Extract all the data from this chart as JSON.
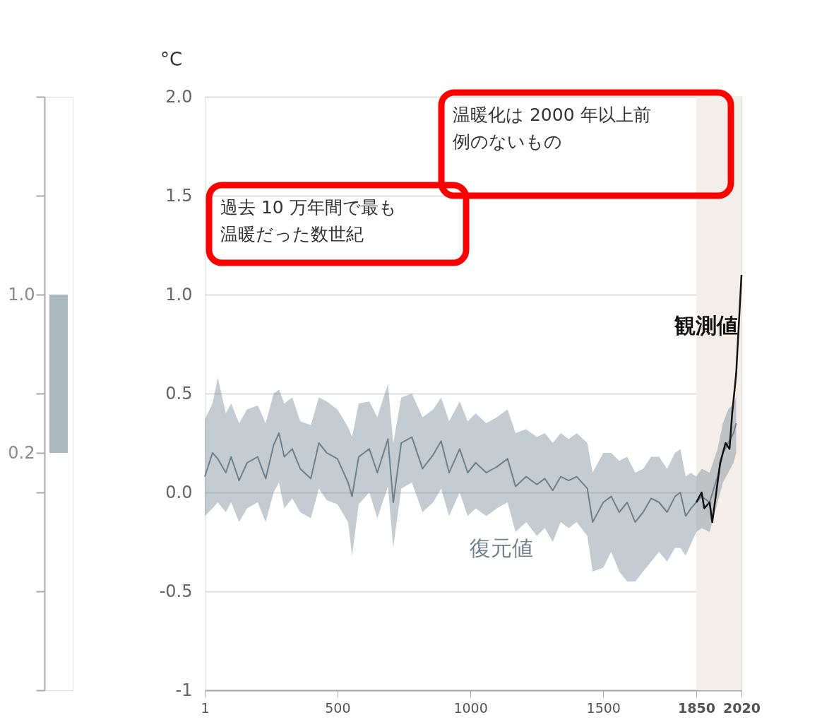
{
  "chart_data": [
    {
      "type": "bar",
      "categories": [
        null
      ],
      "base": [
        0.2
      ],
      "values": [
        0.8
      ],
      "color": "#a9b7bf",
      "ylim": [
        -1,
        2.0
      ],
      "yticks": [
        {
          "value": -1,
          "label": null
        },
        {
          "value": -0.5,
          "label": null
        },
        {
          "value": 0,
          "label": null
        },
        {
          "value": 0.2,
          "label": "0.2"
        },
        {
          "value": 0.5,
          "label": null
        },
        {
          "value": 1.0,
          "label": "1.0"
        },
        {
          "value": 1.5,
          "label": null
        },
        {
          "value": 2.0,
          "label": null
        }
      ],
      "grid": false
    },
    {
      "type": "line",
      "ylabel": "°C",
      "annotations": [
        "過去 10 万年間で最も温暖だった数世紀",
        "温暖化は 2000 年以上前例のないもの"
      ],
      "xlim": [
        1,
        2020
      ],
      "xticks": [
        1,
        500,
        1000,
        1500,
        1850,
        2020
      ],
      "ylim": [
        -1,
        2.0
      ],
      "yticks": [
        {
          "value": -1,
          "label": "-1"
        },
        {
          "value": -0.5,
          "label": "-0.5"
        },
        {
          "value": 0,
          "label": "0.0"
        },
        {
          "value": 0.5,
          "label": "0.5"
        },
        {
          "value": 1.0,
          "label": "1.0"
        },
        {
          "value": 1.5,
          "label": "1.5"
        },
        {
          "value": 2.0,
          "label": "2.0"
        }
      ],
      "grid": "y",
      "bands": [
        {
          "axis": "x",
          "from": 1850,
          "to": 2020,
          "color": "#f4eeea"
        }
      ],
      "series": [
        {
          "name": "復元値",
          "color": "#6f808c",
          "x": [
            1,
            30,
            50,
            80,
            100,
            130,
            160,
            200,
            230,
            260,
            280,
            300,
            330,
            360,
            400,
            430,
            460,
            500,
            540,
            555,
            580,
            620,
            650,
            690,
            710,
            740,
            780,
            820,
            860,
            890,
            920,
            960,
            990,
            1020,
            1060,
            1100,
            1140,
            1170,
            1210,
            1250,
            1280,
            1310,
            1340,
            1370,
            1400,
            1440,
            1460,
            1500,
            1530,
            1560,
            1590,
            1620,
            1650,
            1680,
            1710,
            1740,
            1770,
            1790,
            1810,
            1830,
            1850,
            1870,
            1900,
            1930,
            1950,
            1970,
            1990,
            2000
          ],
          "values": [
            0.08,
            0.2,
            0.17,
            0.1,
            0.18,
            0.06,
            0.15,
            0.18,
            0.07,
            0.24,
            0.3,
            0.18,
            0.22,
            0.12,
            0.07,
            0.25,
            0.2,
            0.17,
            0.05,
            -0.02,
            0.18,
            0.22,
            0.1,
            0.27,
            -0.05,
            0.25,
            0.28,
            0.12,
            0.19,
            0.26,
            0.1,
            0.22,
            0.1,
            0.15,
            0.1,
            0.13,
            0.17,
            0.03,
            0.08,
            0.04,
            0.07,
            0.01,
            0.08,
            0.06,
            0.08,
            0.02,
            -0.15,
            -0.05,
            -0.02,
            -0.1,
            -0.05,
            -0.15,
            -0.1,
            -0.03,
            -0.05,
            -0.1,
            -0.02,
            0.0,
            -0.12,
            -0.08,
            -0.05,
            -0.02,
            -0.05,
            0.08,
            0.2,
            0.25,
            0.3,
            0.35
          ],
          "lower": [
            -0.12,
            -0.08,
            -0.05,
            -0.1,
            -0.05,
            -0.15,
            -0.08,
            -0.05,
            -0.15,
            0.0,
            0.05,
            -0.08,
            -0.03,
            -0.1,
            -0.13,
            0.02,
            -0.04,
            -0.06,
            -0.15,
            -0.32,
            -0.06,
            0.0,
            -0.13,
            0.03,
            -0.28,
            0.02,
            0.05,
            -0.1,
            -0.05,
            0.02,
            -0.12,
            0.0,
            -0.12,
            -0.08,
            -0.12,
            -0.08,
            -0.05,
            -0.2,
            -0.15,
            -0.22,
            -0.18,
            -0.25,
            -0.15,
            -0.18,
            -0.15,
            -0.22,
            -0.4,
            -0.38,
            -0.3,
            -0.4,
            -0.45,
            -0.45,
            -0.4,
            -0.35,
            -0.3,
            -0.35,
            -0.28,
            -0.28,
            -0.32,
            -0.26,
            -0.2,
            -0.18,
            -0.2,
            -0.05,
            0.05,
            0.1,
            0.15,
            0.2
          ],
          "upper": [
            0.37,
            0.45,
            0.58,
            0.4,
            0.45,
            0.35,
            0.42,
            0.44,
            0.35,
            0.5,
            0.52,
            0.45,
            0.48,
            0.36,
            0.34,
            0.48,
            0.46,
            0.42,
            0.33,
            0.28,
            0.45,
            0.46,
            0.38,
            0.55,
            0.25,
            0.48,
            0.5,
            0.38,
            0.42,
            0.48,
            0.36,
            0.46,
            0.36,
            0.4,
            0.35,
            0.38,
            0.42,
            0.3,
            0.32,
            0.28,
            0.3,
            0.25,
            0.3,
            0.27,
            0.3,
            0.25,
            0.1,
            0.2,
            0.2,
            0.16,
            0.18,
            0.1,
            0.12,
            0.18,
            0.18,
            0.12,
            0.2,
            0.22,
            0.08,
            0.1,
            0.08,
            0.12,
            0.1,
            0.22,
            0.35,
            0.42,
            0.45,
            0.48
          ]
        },
        {
          "name": "観測値",
          "color": "#111111",
          "x": [
            1850,
            1870,
            1880,
            1900,
            1910,
            1920,
            1940,
            1950,
            1960,
            1975,
            1985,
            2000,
            2010,
            2020
          ],
          "values": [
            -0.05,
            0.0,
            -0.08,
            -0.05,
            -0.15,
            -0.05,
            0.15,
            0.2,
            0.25,
            0.22,
            0.4,
            0.6,
            0.85,
            1.1
          ]
        }
      ]
    }
  ]
}
